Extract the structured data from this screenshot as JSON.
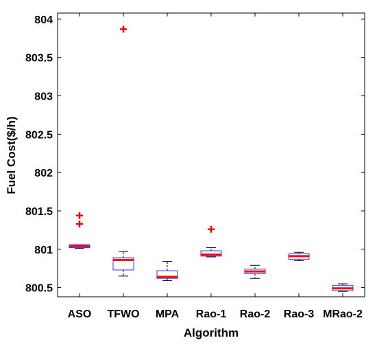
{
  "chart_data": {
    "type": "box",
    "title": "",
    "xlabel": "Algorithm",
    "ylabel": "Fuel Cost($/h)",
    "ylim": [
      800.38,
      804.08
    ],
    "yticks": [
      800.5,
      801,
      801.5,
      802,
      802.5,
      803,
      803.5,
      804
    ],
    "ytick_labels": [
      "800.5",
      "801",
      "801.5",
      "802",
      "802.5",
      "803",
      "803.5",
      "804"
    ],
    "grid": false,
    "categories": [
      "ASO",
      "TFWO",
      "MPA",
      "Rao-1",
      "Rao-2",
      "Rao-3",
      "MRao-2"
    ],
    "boxes": [
      {
        "category": "ASO",
        "whisker_low": 801.01,
        "q1": 801.02,
        "median": 801.04,
        "q3": 801.06,
        "whisker_high": 801.06,
        "outliers": [
          801.44,
          801.33
        ]
      },
      {
        "category": "TFWO",
        "whisker_low": 800.65,
        "q1": 800.73,
        "median": 800.86,
        "q3": 800.89,
        "whisker_high": 800.97,
        "outliers": [
          803.87
        ]
      },
      {
        "category": "MPA",
        "whisker_low": 800.59,
        "q1": 800.62,
        "median": 800.64,
        "q3": 800.72,
        "whisker_high": 800.84,
        "outliers": []
      },
      {
        "category": "Rao-1",
        "whisker_low": 800.9,
        "q1": 800.91,
        "median": 800.93,
        "q3": 800.98,
        "whisker_high": 801.02,
        "outliers": [
          801.26
        ]
      },
      {
        "category": "Rao-2",
        "whisker_low": 800.62,
        "q1": 800.68,
        "median": 800.71,
        "q3": 800.74,
        "whisker_high": 800.79,
        "outliers": []
      },
      {
        "category": "Rao-3",
        "whisker_low": 800.85,
        "q1": 800.87,
        "median": 800.91,
        "q3": 800.94,
        "whisker_high": 800.96,
        "outliers": []
      },
      {
        "category": "MRao-2",
        "whisker_low": 800.45,
        "q1": 800.46,
        "median": 800.49,
        "q3": 800.53,
        "whisker_high": 800.55,
        "outliers": []
      }
    ],
    "colors": {
      "box": "#3333ff",
      "median": "#ff0000",
      "outlier": "#ff0000",
      "whisker": "#000000",
      "axes": "#000000"
    }
  }
}
